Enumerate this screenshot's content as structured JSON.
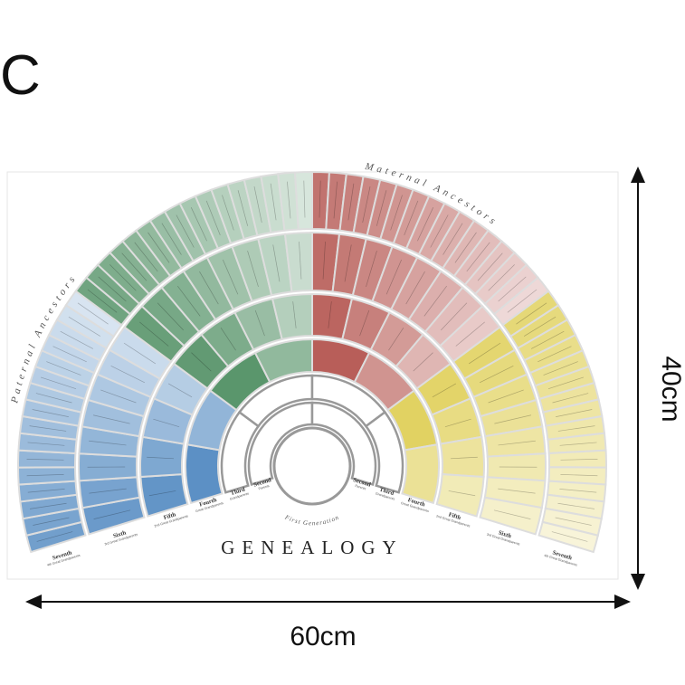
{
  "panel_letter": "C",
  "poster": {
    "title": "GENEALOGY",
    "paternal": "Paternal Ancestors",
    "maternal": "Maternal Ancestors",
    "first_generation": "First Generation",
    "generations_left": [
      {
        "name": "Second",
        "sub": "Parents"
      },
      {
        "name": "Third",
        "sub": "Grandparents"
      },
      {
        "name": "Fourth",
        "sub": "Great Grandparents"
      },
      {
        "name": "Fifth",
        "sub": "2nd Great Grandparents"
      },
      {
        "name": "Sixth",
        "sub": "3rd Great Grandparents"
      },
      {
        "name": "Seventh",
        "sub": "4th Great Grandparents"
      }
    ],
    "generations_right": [
      {
        "name": "Second",
        "sub": "Parents"
      },
      {
        "name": "Third",
        "sub": "Grandparents"
      },
      {
        "name": "Fourth",
        "sub": "Great Grandparents"
      },
      {
        "name": "Fifth",
        "sub": "2nd Great Grandparents"
      },
      {
        "name": "Sixth",
        "sub": "3rd Great Grandparents"
      },
      {
        "name": "Seventh",
        "sub": "4th Great Grandparents"
      }
    ]
  },
  "dimensions": {
    "height": "40cm",
    "width": "60cm"
  }
}
